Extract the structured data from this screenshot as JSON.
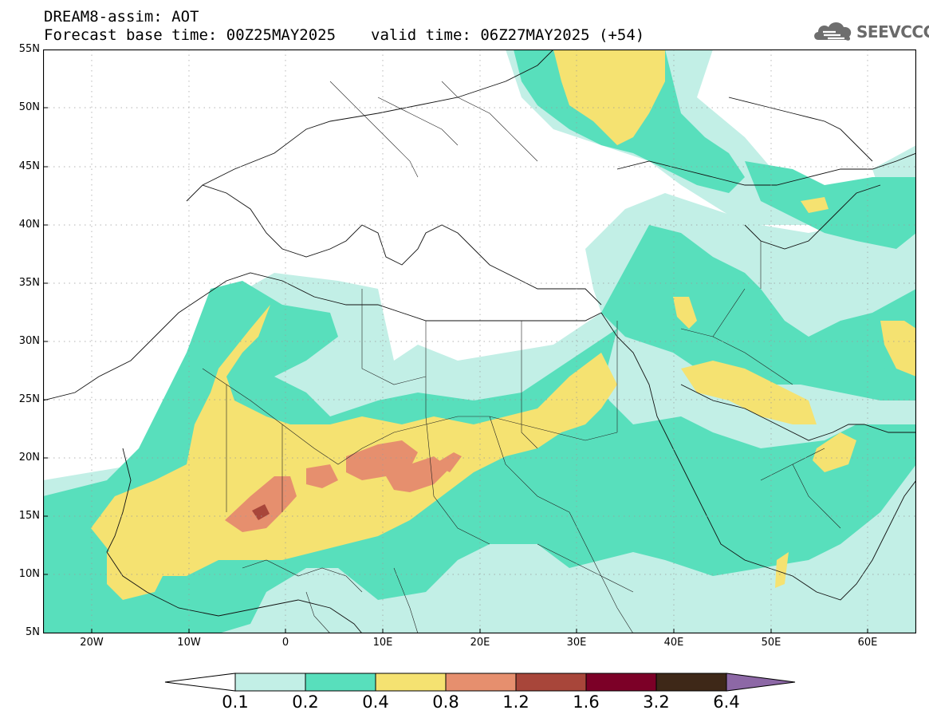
{
  "header": {
    "model": "DREAM8-assim: AOT",
    "base_time": "Forecast base time: 00Z25MAY2025",
    "valid_time": "valid time: 06Z27MAY2025 (+54)"
  },
  "logo": {
    "text": "SEEVCCC",
    "icon": "cloud-logo-icon"
  },
  "map": {
    "field": "AOT",
    "lat_range": [
      5,
      55
    ],
    "lon_range": [
      -25,
      65
    ],
    "lat_labels": [
      "55N",
      "50N",
      "45N",
      "40N",
      "35N",
      "30N",
      "25N",
      "20N",
      "15N",
      "10N",
      "5N"
    ],
    "lon_labels": [
      "20W",
      "10W",
      "0",
      "10E",
      "20E",
      "30E",
      "40E",
      "50E",
      "60E"
    ],
    "gridlines": "dotted"
  },
  "colorbar": {
    "levels": [
      "0.1",
      "0.2",
      "0.4",
      "0.8",
      "1.2",
      "1.6",
      "3.2",
      "6.4"
    ],
    "colors": [
      "#ffffff",
      "#c2efe6",
      "#58dfbc",
      "#f5e271",
      "#e68f6e",
      "#a8463a",
      "#7c0027",
      "#3e2818",
      "#8d68a6"
    ]
  }
}
